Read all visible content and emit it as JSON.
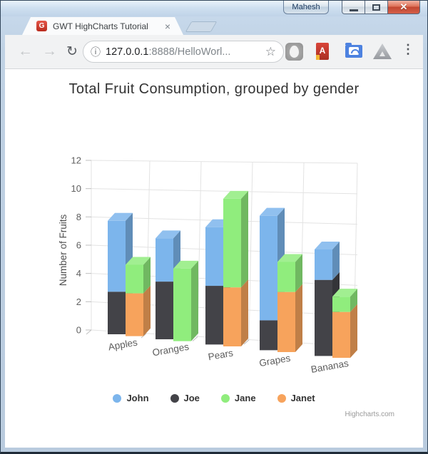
{
  "window": {
    "user_button": "Mahesh"
  },
  "tab": {
    "title": "GWT HighCharts Tutorial",
    "favicon_letter": "G"
  },
  "toolbar": {
    "url_host": "127.0.0.1",
    "url_rest": ":8888/HelloWorl...",
    "ext_book_letter": "A"
  },
  "icons": {
    "back": "←",
    "forward": "→",
    "reload": "↻",
    "page_info": "ⓘ",
    "bookmark_star": "☆",
    "menu": "⋮",
    "tab_close": "×",
    "window_close": "✕"
  },
  "chart_data": {
    "type": "bar",
    "subtype": "3d-stacked-column",
    "title": "Total Fruit Consumption, grouped by gender",
    "categories": [
      "Apples",
      "Oranges",
      "Pears",
      "Grapes",
      "Bananas"
    ],
    "series": [
      {
        "name": "John",
        "color": "#7cb5ec",
        "stack": "male",
        "values": [
          5,
          3,
          4,
          7,
          2
        ]
      },
      {
        "name": "Joe",
        "color": "#434348",
        "stack": "male",
        "values": [
          3,
          4,
          4,
          2,
          5
        ]
      },
      {
        "name": "Jane",
        "color": "#90ed7d",
        "stack": "female",
        "values": [
          2,
          5,
          6,
          2,
          1
        ]
      },
      {
        "name": "Janet",
        "color": "#f7a35c",
        "stack": "female",
        "values": [
          3,
          0,
          4,
          4,
          3
        ]
      }
    ],
    "stacks": {
      "male": [
        "Joe",
        "John"
      ],
      "female": [
        "Janet",
        "Jane"
      ]
    },
    "xlabel": "",
    "ylabel": "Number of Fruits",
    "yticks": [
      0,
      2,
      4,
      6,
      8,
      10,
      12
    ],
    "ylim": [
      0,
      12
    ],
    "grid": true,
    "legend_position": "bottom",
    "legend": [
      "John",
      "Joe",
      "Jane",
      "Janet"
    ],
    "credits": "Highcharts.com"
  }
}
